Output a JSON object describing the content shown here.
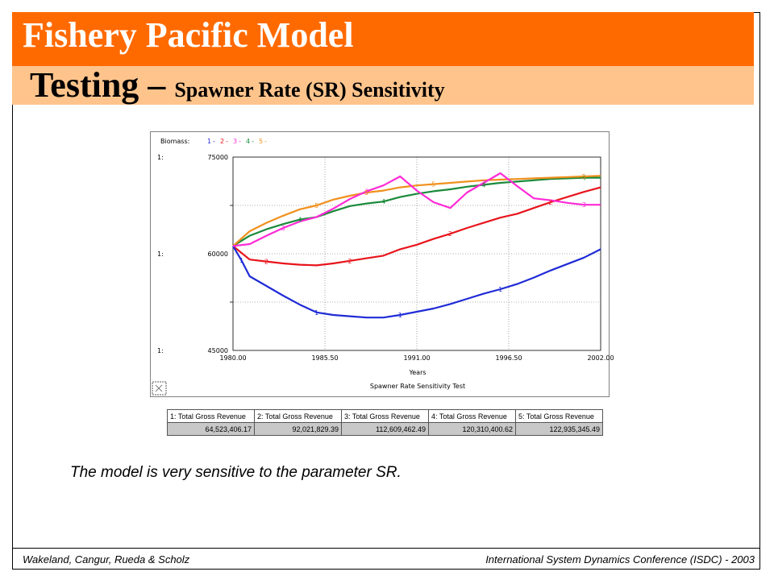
{
  "slide": {
    "title": "Fishery Pacific Model",
    "subtitle_main": "Testing – ",
    "subtitle_detail": "Spawner Rate (SR) Sensitivity",
    "caption": "The model is very sensitive to the parameter SR.",
    "footer_left": "Wakeland, Cangur, Rueda & Scholz",
    "footer_right": "International System Dynamics Conference (ISDC) - 2003",
    "colors": {
      "title_bar": "#ff6a00",
      "subtitle_bar": "#ffc48c"
    }
  },
  "chart_data": {
    "type": "line",
    "legend_label": "Biomass:",
    "legend_items": [
      "1",
      "2",
      "3",
      "4",
      "5"
    ],
    "axis_prefix": "1:",
    "xlabel": "Years",
    "chart_title": "Spawner Rate Sensitivity Test",
    "xlim": [
      1980,
      2002
    ],
    "ylim": [
      45000,
      75000
    ],
    "x_ticks": [
      "1980.00",
      "1985.50",
      "1991.00",
      "1996.50",
      "2002.00"
    ],
    "y_ticks": [
      "75000",
      "60000",
      "45000"
    ],
    "grid": true,
    "series": [
      {
        "name": "1",
        "color": "#1f2bd6",
        "x": [
          1980,
          1980.5,
          1981,
          1982,
          1983,
          1984,
          1985,
          1986,
          1987,
          1988,
          1989,
          1990,
          1991,
          1992,
          1993,
          1994,
          1995,
          1996,
          1997,
          1998,
          1999,
          2000,
          2001,
          2002
        ],
        "y": [
          61200,
          59000,
          56500,
          55000,
          53500,
          52100,
          50900,
          50500,
          50300,
          50100,
          50100,
          50500,
          51000,
          51500,
          52200,
          53000,
          53800,
          54500,
          55300,
          56300,
          57400,
          58400,
          59400,
          60700
        ]
      },
      {
        "name": "2",
        "color": "#e8141c",
        "x": [
          1980,
          1981,
          1982,
          1983,
          1984,
          1985,
          1986,
          1987,
          1988,
          1989,
          1990,
          1991,
          1992,
          1993,
          1994,
          1995,
          1996,
          1997,
          1998,
          1999,
          2000,
          2001,
          2002
        ],
        "y": [
          61200,
          59100,
          58800,
          58500,
          58300,
          58200,
          58500,
          58900,
          59300,
          59700,
          60700,
          61400,
          62300,
          63100,
          64000,
          64800,
          65600,
          66200,
          67100,
          68000,
          68800,
          69600,
          70300
        ]
      },
      {
        "name": "3",
        "color": "#ff2bd6",
        "x": [
          1980,
          1981,
          1982,
          1983,
          1984,
          1985,
          1986,
          1987,
          1988,
          1989,
          1990,
          1991,
          1992,
          1993,
          1994,
          1995,
          1996,
          1997,
          1998,
          1999,
          2000,
          2001,
          2002
        ],
        "y": [
          61200,
          61500,
          62800,
          64000,
          65000,
          65700,
          67000,
          68500,
          69700,
          70600,
          72000,
          69800,
          68000,
          67100,
          69500,
          71000,
          72500,
          70500,
          68600,
          68300,
          67900,
          67600,
          67600
        ]
      },
      {
        "name": "4",
        "color": "#1a8a3a",
        "x": [
          1980,
          1981,
          1982,
          1983,
          1984,
          1985,
          1986,
          1987,
          1988,
          1989,
          1990,
          1991,
          1992,
          1993,
          1994,
          1995,
          1996,
          1997,
          1998,
          1999,
          2000,
          2001,
          2002
        ],
        "y": [
          61200,
          62800,
          63800,
          64600,
          65300,
          65700,
          66600,
          67400,
          67800,
          68100,
          68800,
          69300,
          69700,
          70000,
          70400,
          70700,
          71000,
          71200,
          71400,
          71600,
          71700,
          71800,
          71800
        ]
      },
      {
        "name": "5",
        "color": "#f0901e",
        "x": [
          1980,
          1981,
          1982,
          1983,
          1984,
          1985,
          1986,
          1987,
          1988,
          1989,
          1990,
          1991,
          1992,
          1993,
          1994,
          1995,
          1996,
          1997,
          1998,
          1999,
          2000,
          2001,
          2002
        ],
        "y": [
          61200,
          63500,
          64800,
          65900,
          66900,
          67500,
          68400,
          69000,
          69500,
          69800,
          70300,
          70600,
          70800,
          71000,
          71200,
          71400,
          71500,
          71600,
          71700,
          71800,
          71900,
          72000,
          72100
        ]
      }
    ],
    "table": {
      "headers": [
        "1: Total Gross  Revenue",
        "2: Total Gross  Revenue",
        "3: Total Gross  Revenue",
        "4: Total Gross  Revenue",
        "5: Total Gross  Revenue"
      ],
      "values": [
        "64,523,406.17",
        "92,021,829.39",
        "112,609,462.49",
        "120,310,400.62",
        "122,935,345.49"
      ]
    }
  }
}
